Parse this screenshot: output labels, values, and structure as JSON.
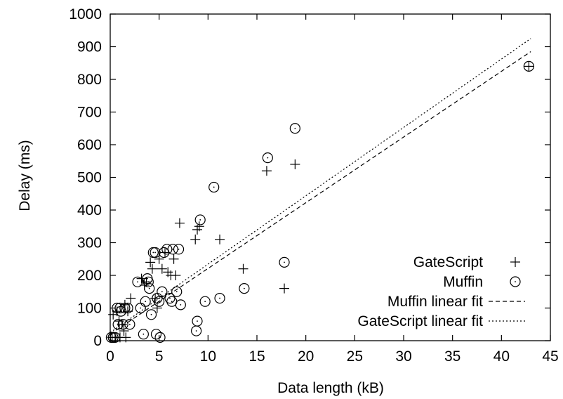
{
  "chart_data": {
    "type": "scatter",
    "xlabel": "Data length (kB)",
    "ylabel": "Delay (ms)",
    "xlim": [
      0,
      45
    ],
    "ylim": [
      0,
      1000
    ],
    "x_ticks": [
      0,
      5,
      10,
      15,
      20,
      25,
      30,
      35,
      40,
      45
    ],
    "y_ticks": [
      0,
      100,
      200,
      300,
      400,
      500,
      600,
      700,
      800,
      900,
      1000
    ],
    "grid": false,
    "legend_position": "bottom-right",
    "series": [
      {
        "name": "GateScript",
        "marker": "plus",
        "points": [
          [
            0.2,
            10
          ],
          [
            0.3,
            80
          ],
          [
            0.5,
            10
          ],
          [
            0.7,
            90
          ],
          [
            0.9,
            60
          ],
          [
            1.0,
            10
          ],
          [
            1.2,
            50
          ],
          [
            1.4,
            30
          ],
          [
            1.5,
            110
          ],
          [
            1.6,
            10
          ],
          [
            1.8,
            90
          ],
          [
            2.1,
            130
          ],
          [
            3.2,
            190
          ],
          [
            3.5,
            170
          ],
          [
            3.7,
            180
          ],
          [
            4.1,
            240
          ],
          [
            4.3,
            220
          ],
          [
            4.6,
            130
          ],
          [
            4.8,
            100
          ],
          [
            5.0,
            250
          ],
          [
            5.3,
            220
          ],
          [
            5.6,
            270
          ],
          [
            5.9,
            210
          ],
          [
            6.2,
            200
          ],
          [
            6.5,
            250
          ],
          [
            6.7,
            200
          ],
          [
            7.1,
            360
          ],
          [
            8.7,
            310
          ],
          [
            8.9,
            340
          ],
          [
            9.1,
            350
          ],
          [
            11.2,
            310
          ],
          [
            13.6,
            220
          ],
          [
            16.0,
            520
          ],
          [
            17.8,
            160
          ],
          [
            18.9,
            540
          ],
          [
            42.8,
            840
          ]
        ]
      },
      {
        "name": "Muffin",
        "marker": "circle",
        "points": [
          [
            0.1,
            10
          ],
          [
            0.3,
            10
          ],
          [
            0.5,
            10
          ],
          [
            0.7,
            100
          ],
          [
            0.8,
            50
          ],
          [
            1.0,
            100
          ],
          [
            1.1,
            90
          ],
          [
            1.3,
            50
          ],
          [
            1.5,
            100
          ],
          [
            1.8,
            100
          ],
          [
            2.0,
            50
          ],
          [
            2.8,
            180
          ],
          [
            3.1,
            100
          ],
          [
            3.4,
            20
          ],
          [
            3.6,
            120
          ],
          [
            3.8,
            190
          ],
          [
            3.9,
            180
          ],
          [
            4.0,
            160
          ],
          [
            4.2,
            80
          ],
          [
            4.4,
            270
          ],
          [
            4.6,
            270
          ],
          [
            4.7,
            20
          ],
          [
            4.8,
            130
          ],
          [
            5.0,
            120
          ],
          [
            5.1,
            10
          ],
          [
            5.3,
            150
          ],
          [
            5.5,
            270
          ],
          [
            5.8,
            280
          ],
          [
            6.1,
            130
          ],
          [
            6.3,
            120
          ],
          [
            6.4,
            280
          ],
          [
            6.8,
            150
          ],
          [
            7.0,
            280
          ],
          [
            7.2,
            110
          ],
          [
            8.8,
            30
          ],
          [
            8.9,
            60
          ],
          [
            9.2,
            370
          ],
          [
            9.7,
            120
          ],
          [
            10.6,
            470
          ],
          [
            11.2,
            130
          ],
          [
            13.7,
            160
          ],
          [
            16.1,
            560
          ],
          [
            17.8,
            240
          ],
          [
            18.9,
            650
          ],
          [
            42.8,
            840
          ]
        ]
      },
      {
        "name": "Muffin linear fit",
        "line_style": "dashed",
        "x": [
          0,
          43
        ],
        "y": [
          20,
          885
        ]
      },
      {
        "name": "GateScript linear fit",
        "line_style": "dotted",
        "x": [
          0,
          43
        ],
        "y": [
          25,
          925
        ]
      }
    ]
  }
}
